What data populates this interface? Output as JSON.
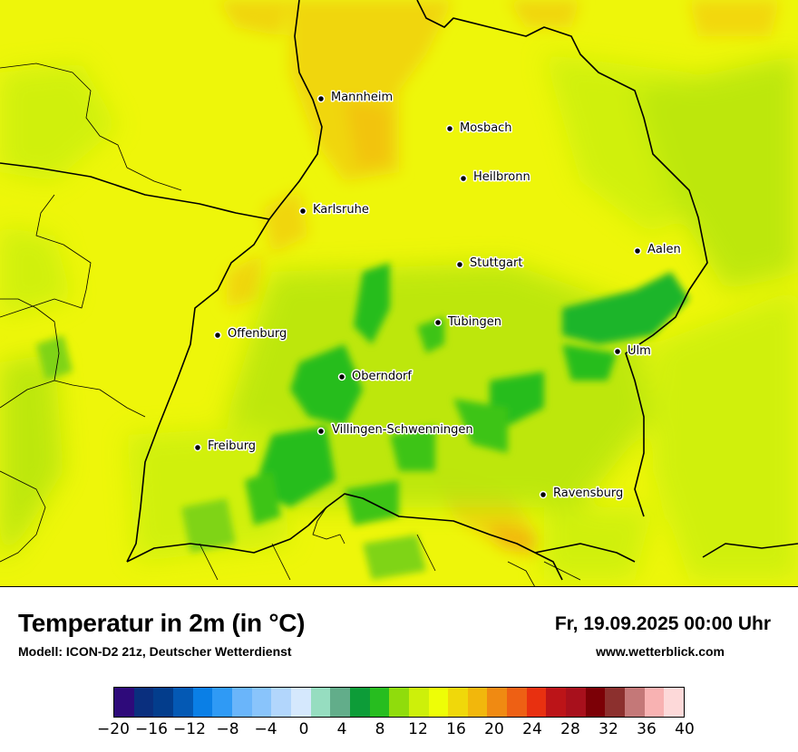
{
  "title": "Temperatur in 2m (in °C)",
  "model": "Modell: ICON-D2 21z, Deutscher Wetterdienst",
  "datetime": "Fr, 19.09.2025 00:00 Uhr",
  "website": "www.wetterblick.com",
  "cities": [
    {
      "name": "Mannheim"
    },
    {
      "name": "Mosbach"
    },
    {
      "name": "Heilbronn"
    },
    {
      "name": "Karlsruhe"
    },
    {
      "name": "Aalen"
    },
    {
      "name": "Stuttgart"
    },
    {
      "name": "Tübingen"
    },
    {
      "name": "Offenburg"
    },
    {
      "name": "Ulm"
    },
    {
      "name": "Oberndorf"
    },
    {
      "name": "Villingen-Schwenningen"
    },
    {
      "name": "Freiburg"
    },
    {
      "name": "Ravensburg"
    }
  ],
  "legend": {
    "colors": [
      "#2e0a7a",
      "#0a2f7e",
      "#033d8c",
      "#0459b4",
      "#0a7fe6",
      "#2f9af5",
      "#6ab5fa",
      "#89c4fb",
      "#b2d6fc",
      "#d5e8fd",
      "#96ddc0",
      "#62ad8a",
      "#0d9c38",
      "#27bd1f",
      "#90dc0c",
      "#cdf00a",
      "#eefe06",
      "#f0d80a",
      "#f2b70c",
      "#f08a12",
      "#ee6014",
      "#e83010",
      "#bc1418",
      "#a8101c",
      "#7c0006",
      "#8c302e",
      "#c47878",
      "#f8b2b2",
      "#fdd9d9"
    ],
    "tick_labels": [
      "−20",
      "−16",
      "−12",
      "−8",
      "−4",
      "0",
      "4",
      "8",
      "12",
      "16",
      "20",
      "24",
      "28",
      "32",
      "36",
      "40"
    ]
  }
}
